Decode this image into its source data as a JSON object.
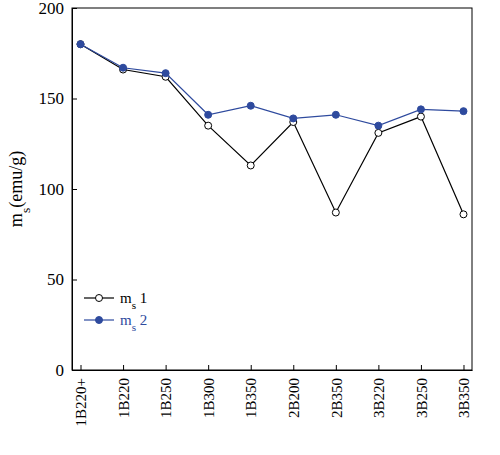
{
  "chart_data": {
    "type": "line",
    "y_label": "ms(emu/g)",
    "categories": [
      "1B220+",
      "1B220",
      "1B250",
      "1B300",
      "1B350",
      "2B200",
      "2B350",
      "3B220",
      "3B250",
      "3B350"
    ],
    "series": [
      {
        "name": "ms 1",
        "color": "#000000",
        "marker": "circle-open",
        "line_style": "solid",
        "values": [
          180,
          166,
          162,
          135,
          113,
          137,
          87,
          131,
          140,
          86
        ]
      },
      {
        "name": "ms 2",
        "color": "#2e4a9e",
        "marker": "circle",
        "line_style": "solid",
        "values": [
          180,
          167,
          164,
          141,
          146,
          139,
          141,
          135,
          144,
          143
        ]
      }
    ],
    "ylim": [
      0,
      200
    ],
    "yticks": [
      0,
      50,
      100,
      150,
      200
    ],
    "grid": false,
    "legend": "lower left"
  }
}
